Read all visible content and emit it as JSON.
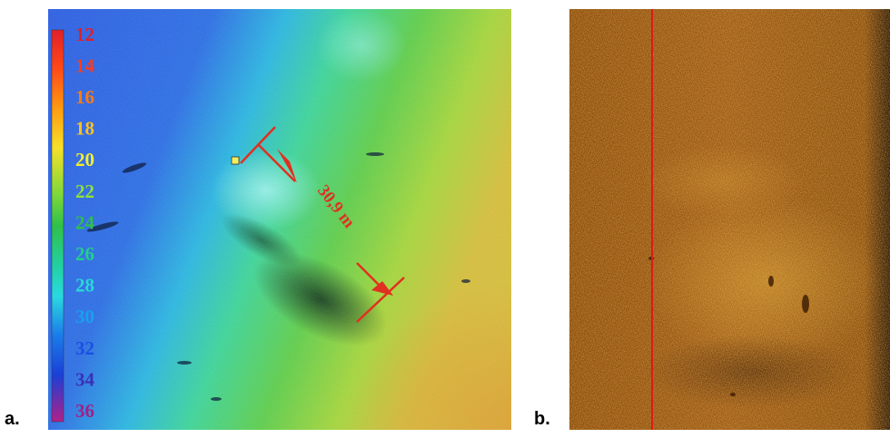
{
  "panels": {
    "a": {
      "letter": "a."
    },
    "b": {
      "letter": "b."
    }
  },
  "depth_scale": {
    "labels": [
      "12",
      "14",
      "16",
      "18",
      "20",
      "22",
      "24",
      "26",
      "28",
      "30",
      "32",
      "34",
      "36"
    ],
    "colors": [
      "#e0202a",
      "#ff3b1a",
      "#ff7a10",
      "#ffc020",
      "#f2ef30",
      "#8fe03a",
      "#2fc04a",
      "#22d08a",
      "#29d9d6",
      "#1aa0ee",
      "#1a50e0",
      "#3a2fb8",
      "#a0208a"
    ]
  },
  "measurement": {
    "label": "30,9 m",
    "color": "#e03020"
  },
  "colors": {
    "sonar_base": "#8a4708",
    "trace_line": "#e01818",
    "marker": "#f4f060"
  }
}
